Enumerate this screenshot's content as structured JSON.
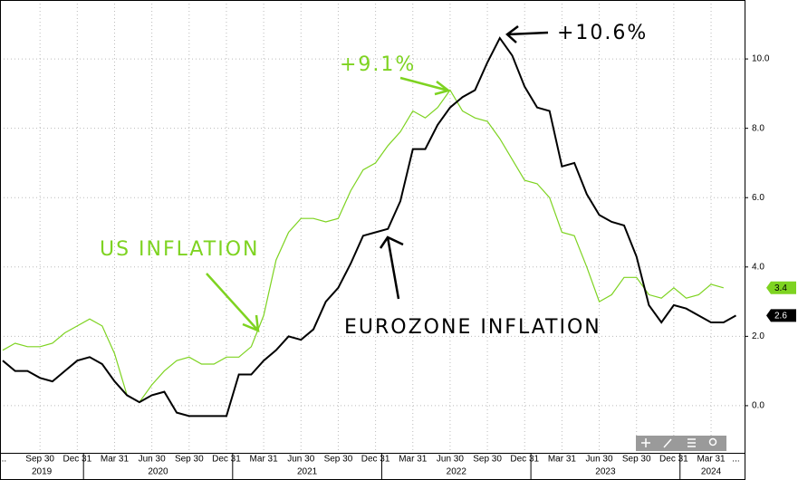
{
  "chart_data": {
    "type": "line",
    "categories": [
      "...",
      null,
      null,
      "Sep 30",
      null,
      null,
      "Dec 31",
      null,
      null,
      "Mar 31",
      null,
      null,
      "Jun 30",
      null,
      null,
      "Sep 30",
      null,
      null,
      "Dec 31",
      null,
      null,
      "Mar 31",
      null,
      null,
      "Jun 30",
      null,
      null,
      "Sep 30",
      null,
      null,
      "Dec 31",
      null,
      null,
      "Mar 31",
      null,
      null,
      "Jun 30",
      null,
      null,
      "Sep 30",
      null,
      null,
      "Dec 31",
      null,
      null,
      "Mar 31",
      null,
      null,
      "Jun 30",
      null,
      null,
      "Sep 30",
      null,
      null,
      "Dec 31",
      null,
      null,
      "Mar 31",
      null,
      "..."
    ],
    "year_groups": [
      {
        "label": "2019",
        "count": 7
      },
      {
        "label": "2020",
        "count": 12
      },
      {
        "label": "2021",
        "count": 12
      },
      {
        "label": "2022",
        "count": 12
      },
      {
        "label": "2023",
        "count": 12
      },
      {
        "label": "2024",
        "count": 5
      }
    ],
    "series": [
      {
        "name": "US INFLATION",
        "color": "#7ed321",
        "value_tag_color": "#7ed321",
        "values": [
          1.6,
          1.8,
          1.7,
          1.7,
          1.8,
          2.1,
          2.3,
          2.5,
          2.3,
          1.5,
          0.3,
          0.1,
          0.6,
          1.0,
          1.3,
          1.4,
          1.2,
          1.2,
          1.4,
          1.4,
          1.7,
          2.6,
          4.2,
          5.0,
          5.4,
          5.4,
          5.3,
          5.4,
          6.2,
          6.8,
          7.0,
          7.5,
          7.9,
          8.5,
          8.3,
          8.6,
          9.1,
          8.5,
          8.3,
          8.2,
          7.7,
          7.1,
          6.5,
          6.4,
          6.0,
          5.0,
          4.9,
          4.0,
          3.0,
          3.2,
          3.7,
          3.7,
          3.2,
          3.1,
          3.4,
          3.1,
          3.2,
          3.5,
          3.4,
          null
        ]
      },
      {
        "name": "EUROZONE INFLATION",
        "color": "#000000",
        "value_tag_color": "#000000",
        "values": [
          1.3,
          1.0,
          1.0,
          0.8,
          0.7,
          1.0,
          1.3,
          1.4,
          1.2,
          0.7,
          0.3,
          0.1,
          0.3,
          0.4,
          -0.2,
          -0.3,
          -0.3,
          -0.3,
          -0.3,
          0.9,
          0.9,
          1.3,
          1.6,
          2.0,
          1.9,
          2.2,
          3.0,
          3.4,
          4.1,
          4.9,
          5.0,
          5.1,
          5.9,
          7.4,
          7.4,
          8.1,
          8.6,
          8.9,
          9.1,
          9.9,
          10.6,
          10.1,
          9.2,
          8.6,
          8.5,
          6.9,
          7.0,
          6.1,
          5.5,
          5.3,
          5.2,
          4.3,
          2.9,
          2.4,
          2.9,
          2.8,
          2.6,
          2.4,
          2.4,
          2.6
        ]
      }
    ],
    "annotations": [
      "+10.6%",
      "+9.1%"
    ],
    "ylim": [
      -1.36,
      11.7
    ],
    "yticks": [
      {
        "value": 0,
        "label": "0.0"
      },
      {
        "value": 2,
        "label": "2.0"
      },
      {
        "value": 4,
        "label": "4.0"
      },
      {
        "value": 6,
        "label": "6.0"
      },
      {
        "value": 8,
        "label": "8.0"
      },
      {
        "value": 10,
        "label": "10.0"
      }
    ],
    "grid": true
  }
}
